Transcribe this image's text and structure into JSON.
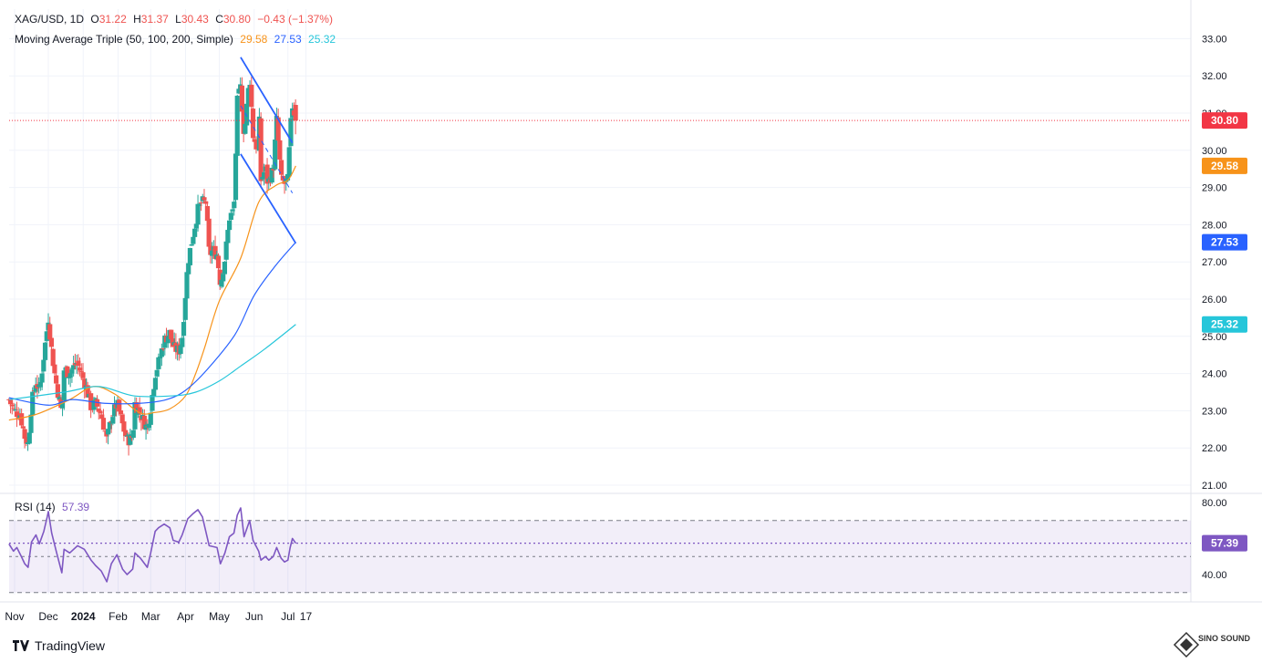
{
  "header": {
    "symbol": "XAG/USD, 1D",
    "open_label": "O",
    "open": "31.22",
    "high_label": "H",
    "high": "31.37",
    "low_label": "L",
    "low": "30.43",
    "close_label": "C",
    "close": "30.80",
    "change": "−0.43 (−1.37%)",
    "ma_title": "Moving Average Triple (50, 100, 200, Simple)",
    "ma50_value": "29.58",
    "ma100_value": "27.53",
    "ma200_value": "25.32",
    "rsi_title": "RSI (14)",
    "rsi_value": "57.39"
  },
  "brand": {
    "name": "TradingView"
  },
  "watermark": {
    "text": "SINO SOUND"
  },
  "colors": {
    "up": "#26a69a",
    "down": "#ef5350",
    "ma50": "#f7931a",
    "ma100": "#2962ff",
    "ma200": "#26c6da",
    "rsi": "#7e57c2",
    "channel": "#2962ff",
    "last_price": "#f23645"
  },
  "chart_data": [
    {
      "type": "candlestick",
      "title": "XAG/USD, 1D",
      "ylim": [
        21.0,
        33.2
      ],
      "y_ticks": [
        "33.00",
        "32.00",
        "31.00",
        "30.00",
        "29.00",
        "28.00",
        "27.00",
        "26.00",
        "25.00",
        "24.00",
        "23.00",
        "22.00",
        "21.00"
      ],
      "x_ticks": [
        "Nov",
        "Dec",
        "2024",
        "Feb",
        "Mar",
        "Apr",
        "May",
        "Jun",
        "Jul",
        "17"
      ],
      "last_price": 30.8,
      "last_price_label": "30.80",
      "price_labels": [
        {
          "value": 29.58,
          "label": "29.58",
          "series": "ma50"
        },
        {
          "value": 27.53,
          "label": "27.53",
          "series": "ma100"
        },
        {
          "value": 25.32,
          "label": "25.32",
          "series": "ma200"
        }
      ],
      "close_anchors": [
        [
          "2023-10-27",
          23.3
        ],
        [
          "2023-10-31",
          23.0
        ],
        [
          "2023-11-06",
          22.9
        ],
        [
          "2023-11-10",
          22.3
        ],
        [
          "2023-11-13",
          22.1
        ],
        [
          "2023-11-16",
          23.2
        ],
        [
          "2023-11-20",
          23.8
        ],
        [
          "2023-11-23",
          23.5
        ],
        [
          "2023-11-27",
          24.5
        ],
        [
          "2023-12-01",
          25.5
        ],
        [
          "2023-12-04",
          24.6
        ],
        [
          "2023-12-07",
          23.9
        ],
        [
          "2023-12-13",
          22.9
        ],
        [
          "2023-12-15",
          24.1
        ],
        [
          "2023-12-20",
          24.0
        ],
        [
          "2023-12-26",
          24.3
        ],
        [
          "2023-12-29",
          24.1
        ],
        [
          "2024-01-03",
          23.7
        ],
        [
          "2024-01-08",
          23.1
        ],
        [
          "2024-01-12",
          23.2
        ],
        [
          "2024-01-17",
          22.9
        ],
        [
          "2024-01-22",
          22.2
        ],
        [
          "2024-01-26",
          22.8
        ],
        [
          "2024-01-31",
          23.2
        ],
        [
          "2024-02-05",
          22.6
        ],
        [
          "2024-02-09",
          22.2
        ],
        [
          "2024-02-14",
          22.3
        ],
        [
          "2024-02-16",
          23.2
        ],
        [
          "2024-02-21",
          22.9
        ],
        [
          "2024-02-27",
          22.5
        ],
        [
          "2024-03-01",
          23.1
        ],
        [
          "2024-03-05",
          24.0
        ],
        [
          "2024-03-08",
          24.3
        ],
        [
          "2024-03-13",
          24.9
        ],
        [
          "2024-03-18",
          25.1
        ],
        [
          "2024-03-21",
          24.7
        ],
        [
          "2024-03-26",
          24.6
        ],
        [
          "2024-03-29",
          25.0
        ],
        [
          "2024-04-03",
          27.0
        ],
        [
          "2024-04-08",
          27.8
        ],
        [
          "2024-04-12",
          28.4
        ],
        [
          "2024-04-15",
          28.6
        ],
        [
          "2024-04-19",
          28.6
        ],
        [
          "2024-04-22",
          27.2
        ],
        [
          "2024-04-25",
          27.3
        ],
        [
          "2024-04-29",
          27.2
        ],
        [
          "2024-05-02",
          26.4
        ],
        [
          "2024-05-06",
          27.1
        ],
        [
          "2024-05-10",
          28.2
        ],
        [
          "2024-05-14",
          28.4
        ],
        [
          "2024-05-17",
          31.3
        ],
        [
          "2024-05-20",
          31.7
        ],
        [
          "2024-05-23",
          30.4
        ],
        [
          "2024-05-28",
          32.0
        ],
        [
          "2024-05-31",
          30.4
        ],
        [
          "2024-06-05",
          29.9
        ],
        [
          "2024-06-06",
          31.3
        ],
        [
          "2024-06-07",
          29.2
        ],
        [
          "2024-06-11",
          29.5
        ],
        [
          "2024-06-13",
          29.1
        ],
        [
          "2024-06-18",
          29.5
        ],
        [
          "2024-06-21",
          30.8
        ],
        [
          "2024-06-25",
          29.2
        ],
        [
          "2024-06-28",
          29.1
        ],
        [
          "2024-07-01",
          29.2
        ],
        [
          "2024-07-03",
          30.5
        ],
        [
          "2024-07-05",
          31.2
        ],
        [
          "2024-07-08",
          30.8
        ]
      ],
      "moving_averages": {
        "ma50": [
          [
            "2023-10-27",
            22.75
          ],
          [
            "2023-11-20",
            22.9
          ],
          [
            "2023-12-20",
            23.3
          ],
          [
            "2024-01-10",
            23.65
          ],
          [
            "2024-01-29",
            23.45
          ],
          [
            "2024-02-20",
            22.95
          ],
          [
            "2024-03-04",
            22.95
          ],
          [
            "2024-03-18",
            23.05
          ],
          [
            "2024-04-01",
            23.4
          ],
          [
            "2024-04-10",
            24.0
          ],
          [
            "2024-04-18",
            24.7
          ],
          [
            "2024-05-01",
            25.95
          ],
          [
            "2024-05-20",
            27.1
          ],
          [
            "2024-06-05",
            28.6
          ],
          [
            "2024-06-20",
            29.05
          ],
          [
            "2024-07-01",
            29.2
          ],
          [
            "2024-07-08",
            29.58
          ]
        ],
        "ma100": [
          [
            "2023-10-27",
            23.35
          ],
          [
            "2023-12-01",
            23.15
          ],
          [
            "2023-12-22",
            23.3
          ],
          [
            "2024-01-20",
            23.2
          ],
          [
            "2024-02-20",
            23.2
          ],
          [
            "2024-03-15",
            23.3
          ],
          [
            "2024-04-01",
            23.55
          ],
          [
            "2024-04-20",
            24.1
          ],
          [
            "2024-05-15",
            25.05
          ],
          [
            "2024-06-01",
            26.1
          ],
          [
            "2024-06-20",
            26.9
          ],
          [
            "2024-07-08",
            27.53
          ]
        ],
        "ma200": [
          [
            "2023-10-27",
            23.3
          ],
          [
            "2023-12-15",
            23.5
          ],
          [
            "2024-01-15",
            23.65
          ],
          [
            "2024-02-15",
            23.4
          ],
          [
            "2024-03-20",
            23.4
          ],
          [
            "2024-04-10",
            23.5
          ],
          [
            "2024-05-01",
            23.8
          ],
          [
            "2024-05-20",
            24.2
          ],
          [
            "2024-06-10",
            24.65
          ],
          [
            "2024-07-08",
            25.32
          ]
        ]
      },
      "channel": {
        "upper": [
          [
            "2024-05-20",
            32.5
          ],
          [
            "2024-07-05",
            30.2
          ]
        ],
        "lower": [
          [
            "2024-05-20",
            29.9
          ],
          [
            "2024-07-08",
            27.5
          ]
        ],
        "mid": [
          [
            "2024-05-20",
            31.2
          ],
          [
            "2024-07-05",
            28.85
          ]
        ]
      }
    },
    {
      "type": "line",
      "title": "RSI (14)",
      "ylim": [
        34,
        81
      ],
      "y_ticks": [
        "80.00",
        "40.00"
      ],
      "bands": [
        70,
        30
      ],
      "midline": 57.39,
      "last_value_label": "57.39",
      "series": [
        {
          "values": [
            [
              "2023-10-27",
              57
            ],
            [
              "2023-10-31",
              53
            ],
            [
              "2023-11-03",
              55
            ],
            [
              "2023-11-07",
              50
            ],
            [
              "2023-11-10",
              46
            ],
            [
              "2023-11-13",
              44
            ],
            [
              "2023-11-16",
              58
            ],
            [
              "2023-11-20",
              62
            ],
            [
              "2023-11-23",
              57
            ],
            [
              "2023-11-27",
              64
            ],
            [
              "2023-11-30",
              72
            ],
            [
              "2023-12-01",
              75
            ],
            [
              "2023-12-04",
              63
            ],
            [
              "2023-12-08",
              53
            ],
            [
              "2023-12-13",
              41
            ],
            [
              "2023-12-15",
              54
            ],
            [
              "2023-12-20",
              52
            ],
            [
              "2023-12-27",
              56
            ],
            [
              "2024-01-02",
              54
            ],
            [
              "2024-01-08",
              48
            ],
            [
              "2024-01-12",
              45
            ],
            [
              "2024-01-17",
              42
            ],
            [
              "2024-01-22",
              36
            ],
            [
              "2024-01-26",
              46
            ],
            [
              "2024-01-31",
              51
            ],
            [
              "2024-02-05",
              43
            ],
            [
              "2024-02-09",
              40
            ],
            [
              "2024-02-14",
              43
            ],
            [
              "2024-02-16",
              52
            ],
            [
              "2024-02-21",
              49
            ],
            [
              "2024-02-27",
              44
            ],
            [
              "2024-03-01",
              52
            ],
            [
              "2024-03-05",
              64
            ],
            [
              "2024-03-08",
              66
            ],
            [
              "2024-03-13",
              68
            ],
            [
              "2024-03-18",
              66
            ],
            [
              "2024-03-21",
              59
            ],
            [
              "2024-03-26",
              58
            ],
            [
              "2024-03-29",
              62
            ],
            [
              "2024-04-03",
              71
            ],
            [
              "2024-04-08",
              74
            ],
            [
              "2024-04-12",
              76
            ],
            [
              "2024-04-16",
              72
            ],
            [
              "2024-04-22",
              56
            ],
            [
              "2024-04-29",
              55
            ],
            [
              "2024-05-02",
              46
            ],
            [
              "2024-05-06",
              52
            ],
            [
              "2024-05-10",
              61
            ],
            [
              "2024-05-14",
              63
            ],
            [
              "2024-05-17",
              73
            ],
            [
              "2024-05-20",
              77
            ],
            [
              "2024-05-23",
              61
            ],
            [
              "2024-05-28",
              70
            ],
            [
              "2024-05-31",
              59
            ],
            [
              "2024-06-05",
              53
            ],
            [
              "2024-06-07",
              48
            ],
            [
              "2024-06-11",
              50
            ],
            [
              "2024-06-14",
              48
            ],
            [
              "2024-06-18",
              50
            ],
            [
              "2024-06-21",
              55
            ],
            [
              "2024-06-25",
              49
            ],
            [
              "2024-06-28",
              47
            ],
            [
              "2024-07-01",
              48
            ],
            [
              "2024-07-03",
              55
            ],
            [
              "2024-07-05",
              60
            ],
            [
              "2024-07-08",
              57.39
            ]
          ]
        }
      ]
    }
  ]
}
